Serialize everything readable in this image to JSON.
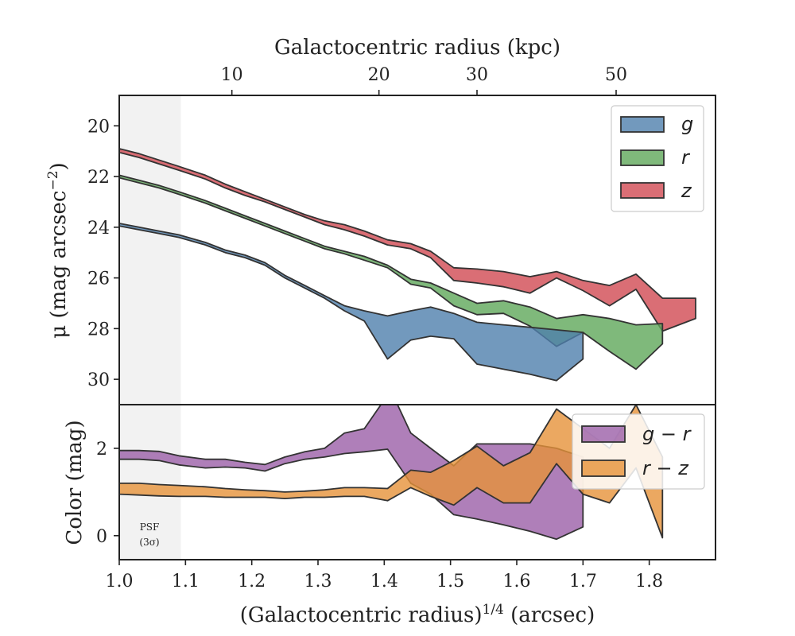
{
  "chart_data": [
    {
      "type": "area",
      "panel": "surface-brightness",
      "ylabel_main": "μ (mag arcsec",
      "ylabel_sup": "−2",
      "ylabel_close": ")",
      "top_xlabel": "Galactocentric radius (kpc)",
      "ylim": [
        31.0,
        18.8
      ],
      "xlim": [
        1.0,
        1.9
      ],
      "yticks": [
        20,
        22,
        24,
        26,
        28,
        30
      ],
      "top_ticks": [
        {
          "label": "10",
          "kpc": 10
        },
        {
          "label": "20",
          "kpc": 20
        },
        {
          "label": "30",
          "kpc": 30
        },
        {
          "label": "50",
          "kpc": 50
        }
      ],
      "legend": {
        "position": "upper-right"
      },
      "series": [
        {
          "name": "g",
          "color": "#4f7fad",
          "upper": [
            [
              1.0,
              23.85
            ],
            [
              1.03,
              24.0
            ],
            [
              1.06,
              24.15
            ],
            [
              1.09,
              24.3
            ],
            [
              1.13,
              24.6
            ],
            [
              1.16,
              24.9
            ],
            [
              1.19,
              25.1
            ],
            [
              1.22,
              25.4
            ],
            [
              1.25,
              25.9
            ],
            [
              1.28,
              26.3
            ],
            [
              1.31,
              26.7
            ],
            [
              1.34,
              27.1
            ],
            [
              1.37,
              27.3
            ],
            [
              1.405,
              27.5
            ],
            [
              1.44,
              27.3
            ],
            [
              1.47,
              27.15
            ],
            [
              1.505,
              27.4
            ],
            [
              1.54,
              27.75
            ],
            [
              1.58,
              27.85
            ],
            [
              1.62,
              27.95
            ],
            [
              1.66,
              28.05
            ],
            [
              1.7,
              28.15
            ]
          ],
          "lower": [
            [
              1.0,
              23.95
            ],
            [
              1.03,
              24.1
            ],
            [
              1.06,
              24.25
            ],
            [
              1.09,
              24.4
            ],
            [
              1.13,
              24.7
            ],
            [
              1.16,
              25.0
            ],
            [
              1.19,
              25.2
            ],
            [
              1.22,
              25.5
            ],
            [
              1.25,
              26.0
            ],
            [
              1.28,
              26.4
            ],
            [
              1.31,
              26.8
            ],
            [
              1.34,
              27.3
            ],
            [
              1.37,
              27.7
            ],
            [
              1.405,
              29.2
            ],
            [
              1.44,
              28.45
            ],
            [
              1.47,
              28.3
            ],
            [
              1.505,
              28.4
            ],
            [
              1.54,
              29.4
            ],
            [
              1.58,
              29.6
            ],
            [
              1.62,
              29.8
            ],
            [
              1.66,
              30.05
            ],
            [
              1.7,
              29.2
            ]
          ]
        },
        {
          "name": "r",
          "color": "#5fa85a",
          "upper": [
            [
              1.0,
              21.95
            ],
            [
              1.03,
              22.15
            ],
            [
              1.06,
              22.35
            ],
            [
              1.09,
              22.6
            ],
            [
              1.13,
              22.95
            ],
            [
              1.16,
              23.25
            ],
            [
              1.19,
              23.55
            ],
            [
              1.22,
              23.85
            ],
            [
              1.25,
              24.15
            ],
            [
              1.28,
              24.45
            ],
            [
              1.31,
              24.75
            ],
            [
              1.34,
              24.95
            ],
            [
              1.37,
              25.15
            ],
            [
              1.405,
              25.5
            ],
            [
              1.44,
              26.05
            ],
            [
              1.47,
              26.2
            ],
            [
              1.505,
              26.6
            ],
            [
              1.54,
              27.0
            ],
            [
              1.58,
              26.9
            ],
            [
              1.62,
              27.15
            ],
            [
              1.66,
              27.6
            ],
            [
              1.7,
              27.45
            ],
            [
              1.74,
              27.6
            ],
            [
              1.78,
              27.85
            ],
            [
              1.82,
              27.8
            ]
          ],
          "lower": [
            [
              1.0,
              22.05
            ],
            [
              1.03,
              22.25
            ],
            [
              1.06,
              22.45
            ],
            [
              1.09,
              22.7
            ],
            [
              1.13,
              23.05
            ],
            [
              1.16,
              23.35
            ],
            [
              1.19,
              23.65
            ],
            [
              1.22,
              23.95
            ],
            [
              1.25,
              24.25
            ],
            [
              1.28,
              24.55
            ],
            [
              1.31,
              24.85
            ],
            [
              1.34,
              25.05
            ],
            [
              1.37,
              25.3
            ],
            [
              1.405,
              25.6
            ],
            [
              1.44,
              26.25
            ],
            [
              1.47,
              26.4
            ],
            [
              1.505,
              27.1
            ],
            [
              1.54,
              27.45
            ],
            [
              1.58,
              27.4
            ],
            [
              1.62,
              27.9
            ],
            [
              1.66,
              28.7
            ],
            [
              1.7,
              28.15
            ],
            [
              1.74,
              28.9
            ],
            [
              1.78,
              29.6
            ],
            [
              1.82,
              28.6
            ]
          ]
        },
        {
          "name": "z",
          "color": "#d14a53",
          "upper": [
            [
              1.0,
              20.9
            ],
            [
              1.03,
              21.1
            ],
            [
              1.06,
              21.35
            ],
            [
              1.09,
              21.6
            ],
            [
              1.13,
              21.95
            ],
            [
              1.16,
              22.3
            ],
            [
              1.19,
              22.6
            ],
            [
              1.22,
              22.9
            ],
            [
              1.25,
              23.2
            ],
            [
              1.28,
              23.5
            ],
            [
              1.31,
              23.75
            ],
            [
              1.34,
              23.9
            ],
            [
              1.37,
              24.15
            ],
            [
              1.405,
              24.5
            ],
            [
              1.44,
              24.65
            ],
            [
              1.47,
              24.95
            ],
            [
              1.505,
              25.6
            ],
            [
              1.54,
              25.65
            ],
            [
              1.58,
              25.75
            ],
            [
              1.62,
              25.95
            ],
            [
              1.66,
              25.75
            ],
            [
              1.7,
              26.1
            ],
            [
              1.74,
              26.3
            ],
            [
              1.78,
              25.85
            ],
            [
              1.82,
              26.8
            ],
            [
              1.87,
              26.8
            ]
          ],
          "lower": [
            [
              1.0,
              21.05
            ],
            [
              1.03,
              21.25
            ],
            [
              1.06,
              21.5
            ],
            [
              1.09,
              21.75
            ],
            [
              1.13,
              22.1
            ],
            [
              1.16,
              22.45
            ],
            [
              1.19,
              22.75
            ],
            [
              1.22,
              23.0
            ],
            [
              1.25,
              23.3
            ],
            [
              1.28,
              23.6
            ],
            [
              1.31,
              23.9
            ],
            [
              1.34,
              24.1
            ],
            [
              1.37,
              24.35
            ],
            [
              1.405,
              24.7
            ],
            [
              1.44,
              24.85
            ],
            [
              1.47,
              25.2
            ],
            [
              1.505,
              26.1
            ],
            [
              1.54,
              26.2
            ],
            [
              1.58,
              26.35
            ],
            [
              1.62,
              26.6
            ],
            [
              1.66,
              26.0
            ],
            [
              1.7,
              26.5
            ],
            [
              1.74,
              27.1
            ],
            [
              1.78,
              26.45
            ],
            [
              1.82,
              28.1
            ],
            [
              1.87,
              27.6
            ]
          ]
        }
      ]
    },
    {
      "type": "area",
      "panel": "color",
      "ylabel": "Color (mag)",
      "xlabel_main": "(Galactocentric radius)",
      "xlabel_sup": "1/4",
      "xlabel_unit": " (arcsec)",
      "xlim": [
        1.0,
        1.9
      ],
      "ylim": [
        -0.55,
        3.0
      ],
      "xticks": [
        {
          "label": "1.0",
          "value": 1.0
        },
        {
          "label": "1.1",
          "value": 1.1
        },
        {
          "label": "1.2",
          "value": 1.2
        },
        {
          "label": "1.3",
          "value": 1.3
        },
        {
          "label": "1.4",
          "value": 1.4
        },
        {
          "label": "1.5",
          "value": 1.5
        },
        {
          "label": "1.6",
          "value": 1.6
        },
        {
          "label": "1.7",
          "value": 1.7
        },
        {
          "label": "1.8",
          "value": 1.8
        }
      ],
      "yticks": [
        0,
        2
      ],
      "legend": {
        "position": "upper-right"
      },
      "psf_region": {
        "x": [
          1.0,
          1.093
        ],
        "label_line1": "PSF",
        "label_line2": "(3σ)"
      },
      "series": [
        {
          "name": "g − r",
          "color": "#9b5fa8",
          "upper": [
            [
              1.0,
              1.95
            ],
            [
              1.03,
              1.95
            ],
            [
              1.06,
              1.93
            ],
            [
              1.09,
              1.83
            ],
            [
              1.13,
              1.75
            ],
            [
              1.16,
              1.75
            ],
            [
              1.19,
              1.68
            ],
            [
              1.22,
              1.63
            ],
            [
              1.25,
              1.8
            ],
            [
              1.28,
              1.92
            ],
            [
              1.31,
              2.0
            ],
            [
              1.34,
              2.35
            ],
            [
              1.37,
              2.45
            ],
            [
              1.395,
              3.0
            ],
            [
              1.42,
              3.0
            ],
            [
              1.44,
              2.35
            ],
            [
              1.47,
              2.0
            ],
            [
              1.505,
              1.6
            ],
            [
              1.54,
              2.1
            ],
            [
              1.58,
              2.1
            ],
            [
              1.62,
              2.1
            ],
            [
              1.66,
              2.0
            ],
            [
              1.7,
              1.8
            ]
          ],
          "lower": [
            [
              1.0,
              1.75
            ],
            [
              1.03,
              1.75
            ],
            [
              1.06,
              1.72
            ],
            [
              1.09,
              1.62
            ],
            [
              1.13,
              1.55
            ],
            [
              1.16,
              1.57
            ],
            [
              1.19,
              1.55
            ],
            [
              1.22,
              1.48
            ],
            [
              1.25,
              1.65
            ],
            [
              1.28,
              1.75
            ],
            [
              1.31,
              1.8
            ],
            [
              1.34,
              1.88
            ],
            [
              1.37,
              1.92
            ],
            [
              1.405,
              1.98
            ],
            [
              1.44,
              1.2
            ],
            [
              1.47,
              0.95
            ],
            [
              1.505,
              0.48
            ],
            [
              1.54,
              0.38
            ],
            [
              1.58,
              0.25
            ],
            [
              1.62,
              0.1
            ],
            [
              1.66,
              -0.08
            ],
            [
              1.7,
              0.2
            ]
          ]
        },
        {
          "name": "r − z",
          "color": "#e6923a",
          "upper": [
            [
              1.0,
              1.2
            ],
            [
              1.03,
              1.2
            ],
            [
              1.06,
              1.17
            ],
            [
              1.09,
              1.15
            ],
            [
              1.13,
              1.12
            ],
            [
              1.16,
              1.08
            ],
            [
              1.19,
              1.05
            ],
            [
              1.22,
              1.03
            ],
            [
              1.25,
              1.0
            ],
            [
              1.28,
              1.02
            ],
            [
              1.31,
              1.05
            ],
            [
              1.34,
              1.1
            ],
            [
              1.37,
              1.1
            ],
            [
              1.405,
              1.08
            ],
            [
              1.44,
              1.5
            ],
            [
              1.47,
              1.45
            ],
            [
              1.505,
              1.72
            ],
            [
              1.54,
              2.05
            ],
            [
              1.58,
              1.6
            ],
            [
              1.62,
              1.9
            ],
            [
              1.66,
              2.9
            ],
            [
              1.7,
              2.45
            ],
            [
              1.74,
              2.0
            ],
            [
              1.78,
              3.0
            ],
            [
              1.82,
              1.8
            ]
          ],
          "lower": [
            [
              1.0,
              0.95
            ],
            [
              1.03,
              0.93
            ],
            [
              1.06,
              0.91
            ],
            [
              1.09,
              0.9
            ],
            [
              1.13,
              0.9
            ],
            [
              1.16,
              0.88
            ],
            [
              1.19,
              0.88
            ],
            [
              1.22,
              0.88
            ],
            [
              1.25,
              0.85
            ],
            [
              1.28,
              0.88
            ],
            [
              1.31,
              0.88
            ],
            [
              1.34,
              0.9
            ],
            [
              1.37,
              0.9
            ],
            [
              1.405,
              0.8
            ],
            [
              1.44,
              1.1
            ],
            [
              1.47,
              0.9
            ],
            [
              1.505,
              0.7
            ],
            [
              1.54,
              1.1
            ],
            [
              1.58,
              0.75
            ],
            [
              1.62,
              0.75
            ],
            [
              1.66,
              1.65
            ],
            [
              1.7,
              0.95
            ],
            [
              1.74,
              0.75
            ],
            [
              1.78,
              1.55
            ],
            [
              1.82,
              -0.05
            ]
          ]
        }
      ]
    }
  ]
}
